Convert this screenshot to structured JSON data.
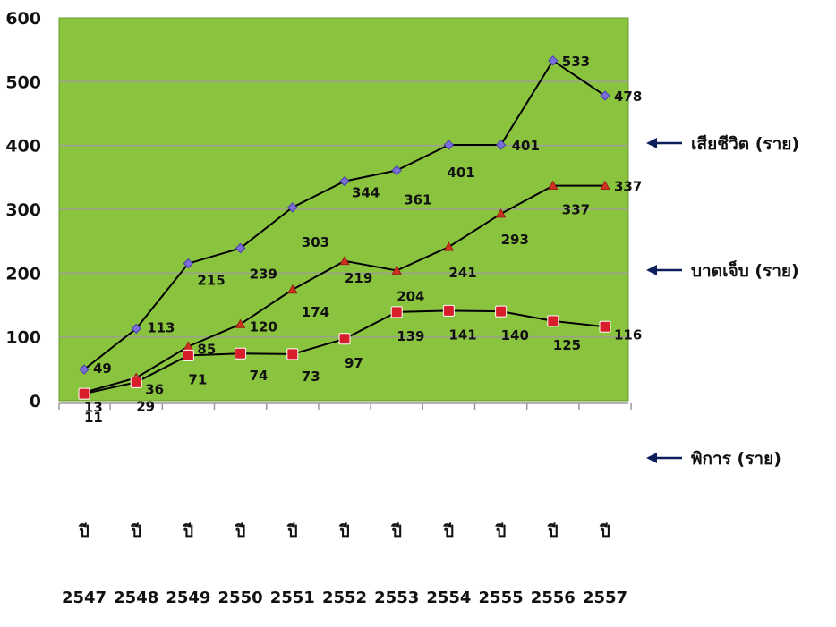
{
  "chart_data": {
    "type": "line",
    "grid": true,
    "ylim": [
      0,
      600
    ],
    "yticks": [
      0,
      100,
      200,
      300,
      400,
      500,
      600
    ],
    "categories": [
      [
        "ปี",
        "2547"
      ],
      [
        "ปี",
        "2548"
      ],
      [
        "ปี",
        "2549"
      ],
      [
        "ปี",
        "2550"
      ],
      [
        "ปี",
        "2551"
      ],
      [
        "ปี",
        "2552"
      ],
      [
        "ปี",
        "2553"
      ],
      [
        "ปี",
        "2554"
      ],
      [
        "ปี",
        "2555"
      ],
      [
        "ปี",
        "2556"
      ],
      [
        "ปี",
        "2557"
      ]
    ],
    "series": [
      {
        "name": "เสียชีวิต (ราย)",
        "marker": "diamond",
        "marker_color": "#7a6fd8",
        "values": [
          49,
          113,
          215,
          239,
          303,
          344,
          361,
          401,
          401,
          533,
          478
        ]
      },
      {
        "name": "บาดเจ็บ (ราย)",
        "marker": "triangle",
        "marker_color": "#d03020",
        "values": [
          13,
          36,
          85,
          120,
          174,
          219,
          204,
          241,
          293,
          337,
          337
        ]
      },
      {
        "name": "พิการ (ราย)",
        "marker": "square",
        "marker_color": "#d81e2a",
        "values": [
          11,
          29,
          71,
          74,
          73,
          97,
          139,
          141,
          140,
          125,
          116
        ]
      }
    ],
    "colors": {
      "plot_background": "#8ac43f",
      "gridline": "#9aa28c",
      "line": "#000000",
      "legend_arrow": "#0c1f5c"
    }
  }
}
